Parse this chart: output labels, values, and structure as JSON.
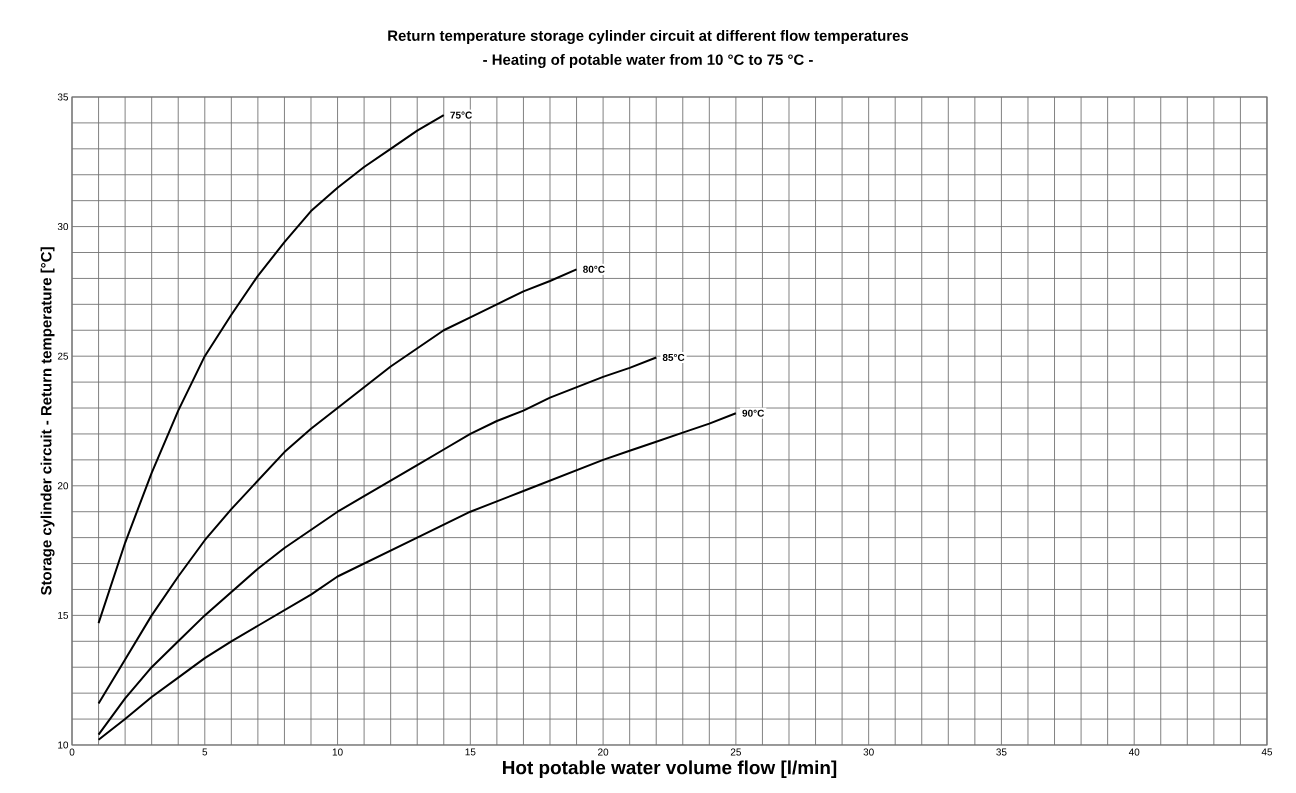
{
  "chart_data": {
    "type": "line",
    "title": "Return temperature storage cylinder circuit at different flow temperatures",
    "subtitle": "- Heating of potable water from 10 °C to 75 °C -",
    "xlabel": "Hot potable water volume flow [l/min]",
    "ylabel": "Storage cylinder circuit - Return temperature [°C]",
    "series": [
      {
        "name": "75°C",
        "color": "#000000",
        "x": [
          1,
          2,
          3,
          4,
          5,
          6,
          7,
          8,
          9,
          10,
          11,
          12,
          13,
          14
        ],
        "values": [
          14.7,
          17.8,
          20.5,
          22.9,
          25.0,
          26.6,
          28.1,
          29.4,
          30.6,
          31.5,
          32.3,
          33.0,
          33.7,
          34.3
        ]
      },
      {
        "name": "80°C",
        "color": "#000000",
        "x": [
          1,
          2,
          3,
          4,
          5,
          6,
          7,
          8,
          9,
          10,
          11,
          12,
          13,
          14,
          15,
          16,
          17,
          18,
          19
        ],
        "values": [
          11.6,
          13.3,
          15.0,
          16.5,
          17.9,
          19.1,
          20.2,
          21.3,
          22.2,
          23.0,
          23.8,
          24.6,
          25.3,
          26.0,
          26.5,
          27.0,
          27.5,
          27.9,
          28.35
        ]
      },
      {
        "name": "85°C",
        "color": "#000000",
        "x": [
          1,
          2,
          3,
          4,
          5,
          6,
          7,
          8,
          9,
          10,
          11,
          12,
          13,
          14,
          15,
          16,
          17,
          18,
          19,
          20,
          21,
          22
        ],
        "values": [
          10.4,
          11.8,
          13.0,
          14.0,
          15.0,
          15.9,
          16.8,
          17.6,
          18.3,
          19.0,
          19.6,
          20.2,
          20.8,
          21.4,
          22.0,
          22.5,
          22.9,
          23.4,
          23.8,
          24.2,
          24.55,
          24.95
        ]
      },
      {
        "name": "90°C",
        "color": "#000000",
        "x": [
          1,
          2,
          3,
          4,
          5,
          6,
          7,
          8,
          9,
          10,
          11,
          12,
          13,
          14,
          15,
          16,
          17,
          18,
          19,
          20,
          21,
          22,
          23,
          24,
          25
        ],
        "values": [
          10.2,
          11.0,
          11.85,
          12.6,
          13.35,
          14.0,
          14.6,
          15.2,
          15.8,
          16.5,
          17.0,
          17.5,
          18.0,
          18.5,
          19.0,
          19.4,
          19.8,
          20.2,
          20.6,
          21.0,
          21.35,
          21.7,
          22.05,
          22.4,
          22.8
        ]
      }
    ],
    "xlim": [
      0,
      45
    ],
    "ylim": [
      10,
      35
    ],
    "xticks": [
      0,
      {
        "value": 1,
        "label": null
      },
      {
        "value": 2,
        "label": null
      },
      {
        "value": 3,
        "label": null
      },
      {
        "value": 4,
        "label": null
      },
      5,
      {
        "value": 6,
        "label": null
      },
      {
        "value": 7,
        "label": null
      },
      {
        "value": 8,
        "label": null
      },
      {
        "value": 9,
        "label": null
      },
      10,
      {
        "value": 11,
        "label": null
      },
      {
        "value": 12,
        "label": null
      },
      {
        "value": 13,
        "label": null
      },
      {
        "value": 14,
        "label": null
      },
      15,
      {
        "value": 16,
        "label": null
      },
      {
        "value": 17,
        "label": null
      },
      {
        "value": 18,
        "label": null
      },
      {
        "value": 19,
        "label": null
      },
      20,
      {
        "value": 21,
        "label": null
      },
      {
        "value": 22,
        "label": null
      },
      {
        "value": 23,
        "label": null
      },
      {
        "value": 24,
        "label": null
      },
      25,
      {
        "value": 26,
        "label": null
      },
      {
        "value": 27,
        "label": null
      },
      {
        "value": 28,
        "label": null
      },
      {
        "value": 29,
        "label": null
      },
      30,
      {
        "value": 31,
        "label": null
      },
      {
        "value": 32,
        "label": null
      },
      {
        "value": 33,
        "label": null
      },
      {
        "value": 34,
        "label": null
      },
      35,
      {
        "value": 36,
        "label": null
      },
      {
        "value": 37,
        "label": null
      },
      {
        "value": 38,
        "label": null
      },
      {
        "value": 39,
        "label": null
      },
      40,
      {
        "value": 41,
        "label": null
      },
      {
        "value": 42,
        "label": null
      },
      {
        "value": 43,
        "label": null
      },
      {
        "value": 44,
        "label": null
      },
      45
    ],
    "yticks": [
      10,
      {
        "value": 11,
        "label": null
      },
      {
        "value": 12,
        "label": null
      },
      {
        "value": 13,
        "label": null
      },
      {
        "value": 14,
        "label": null
      },
      15,
      {
        "value": 16,
        "label": null
      },
      {
        "value": 17,
        "label": null
      },
      {
        "value": 18,
        "label": null
      },
      {
        "value": 19,
        "label": null
      },
      20,
      {
        "value": 21,
        "label": null
      },
      {
        "value": 22,
        "label": null
      },
      {
        "value": 23,
        "label": null
      },
      {
        "value": 24,
        "label": null
      },
      25,
      {
        "value": 26,
        "label": null
      },
      {
        "value": 27,
        "label": null
      },
      {
        "value": 28,
        "label": null
      },
      {
        "value": 29,
        "label": null
      },
      30,
      {
        "value": 31,
        "label": null
      },
      {
        "value": 32,
        "label": null
      },
      {
        "value": 33,
        "label": null
      },
      {
        "value": 34,
        "label": null
      },
      35
    ],
    "grid": true,
    "marker": "none",
    "line_style": "solid"
  }
}
